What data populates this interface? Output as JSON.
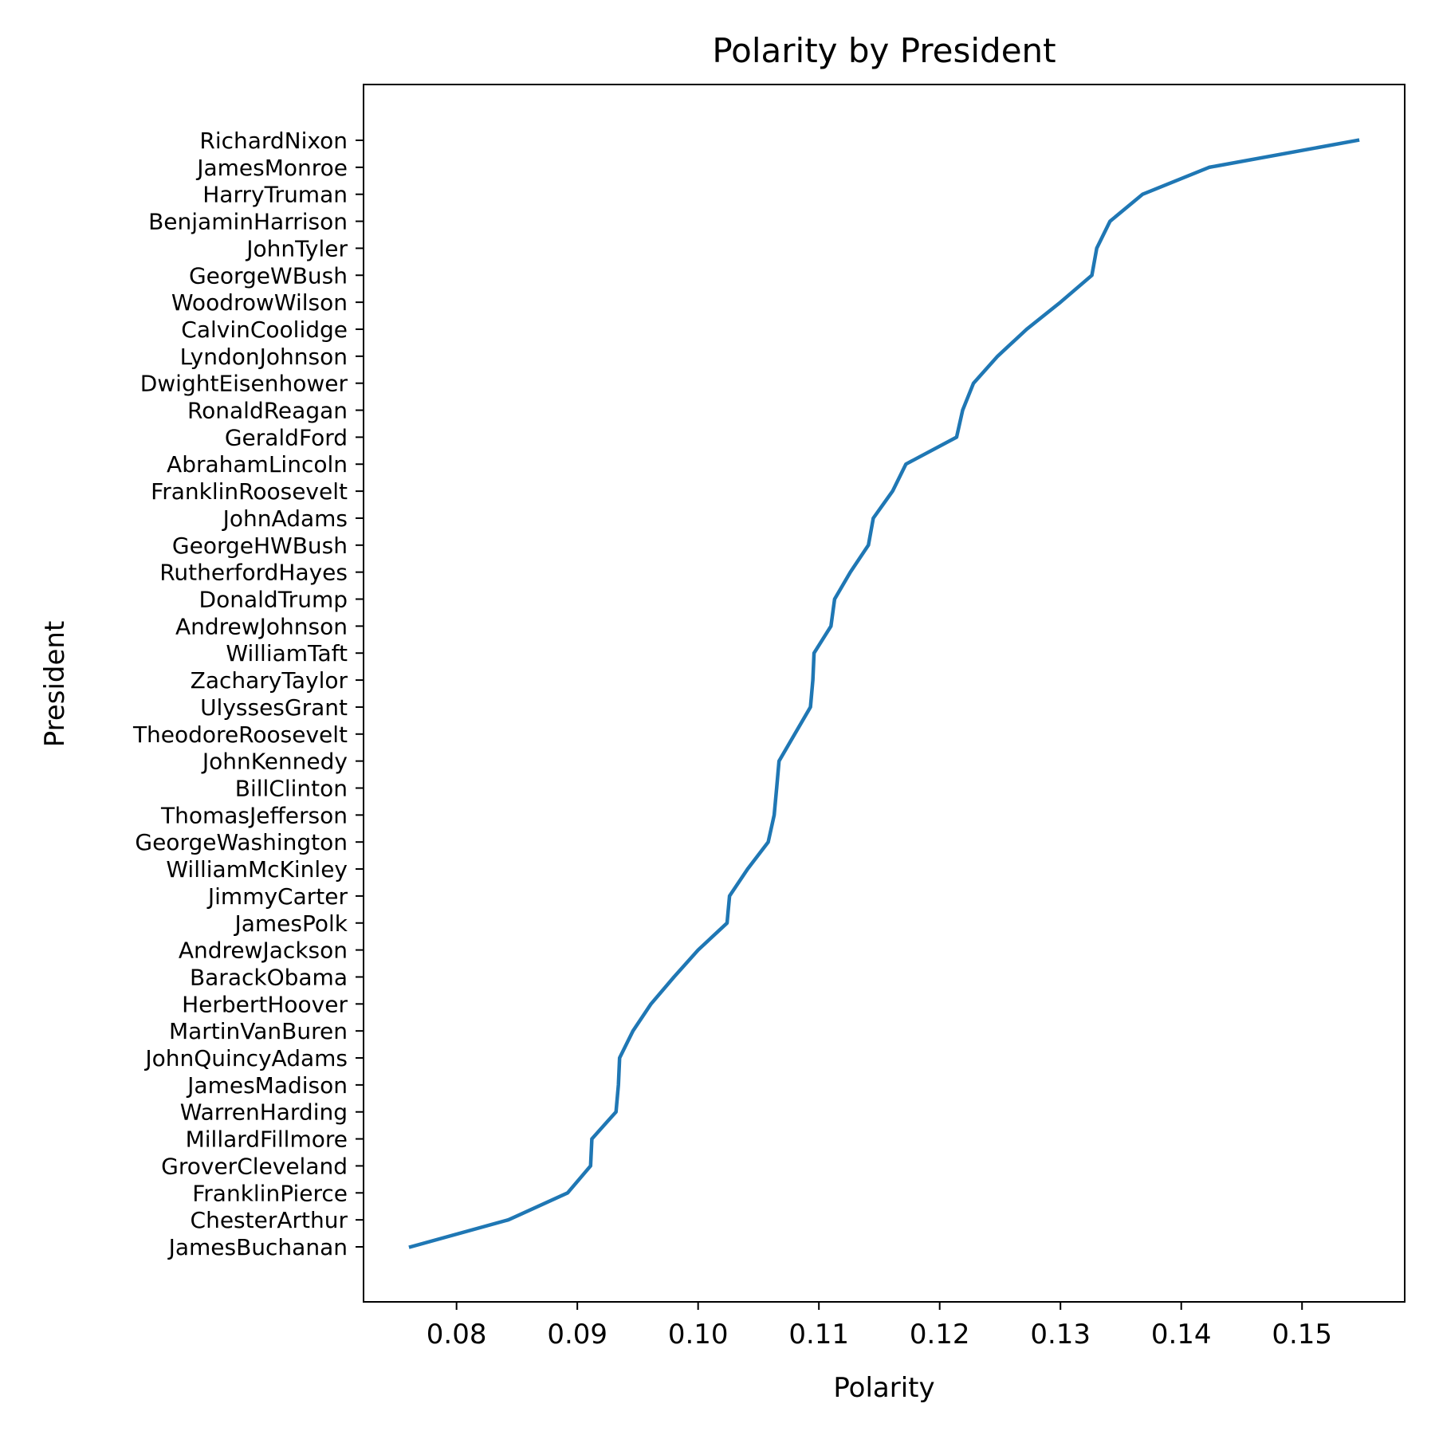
{
  "chart_data": {
    "type": "line",
    "title": "Polarity by President",
    "xlabel": "Polarity",
    "ylabel": "President",
    "xlim": [
      0.0723,
      0.1585
    ],
    "xticks": [
      "0.08",
      "0.09",
      "0.10",
      "0.11",
      "0.12",
      "0.13",
      "0.14",
      "0.15"
    ],
    "xtick_values": [
      0.08,
      0.09,
      0.1,
      0.11,
      0.12,
      0.13,
      0.14,
      0.15
    ],
    "grid": false,
    "series": [
      {
        "color": "#1f77b4",
        "points": [
          {
            "president": "JamesBuchanan",
            "polarity": 0.0762
          },
          {
            "president": "ChesterArthur",
            "polarity": 0.0843
          },
          {
            "president": "FranklinPierce",
            "polarity": 0.0892
          },
          {
            "president": "GroverCleveland",
            "polarity": 0.0911
          },
          {
            "president": "MillardFillmore",
            "polarity": 0.0912
          },
          {
            "president": "WarrenHarding",
            "polarity": 0.0932
          },
          {
            "president": "JamesMadison",
            "polarity": 0.0934
          },
          {
            "president": "JohnQuincyAdams",
            "polarity": 0.0935
          },
          {
            "president": "MartinVanBuren",
            "polarity": 0.0946
          },
          {
            "president": "HerbertHoover",
            "polarity": 0.0961
          },
          {
            "president": "BarackObama",
            "polarity": 0.098
          },
          {
            "president": "AndrewJackson",
            "polarity": 0.1
          },
          {
            "president": "JamesPolk",
            "polarity": 0.1024
          },
          {
            "president": "JimmyCarter",
            "polarity": 0.1026
          },
          {
            "president": "WilliamMcKinley",
            "polarity": 0.1041
          },
          {
            "president": "GeorgeWashington",
            "polarity": 0.1058
          },
          {
            "president": "ThomasJefferson",
            "polarity": 0.1063
          },
          {
            "president": "BillClinton",
            "polarity": 0.1065
          },
          {
            "president": "JohnKennedy",
            "polarity": 0.1067
          },
          {
            "president": "TheodoreRoosevelt",
            "polarity": 0.108
          },
          {
            "president": "UlyssesGrant",
            "polarity": 0.1093
          },
          {
            "president": "ZacharyTaylor",
            "polarity": 0.1095
          },
          {
            "president": "WilliamTaft",
            "polarity": 0.1096
          },
          {
            "president": "AndrewJohnson",
            "polarity": 0.111
          },
          {
            "president": "DonaldTrump",
            "polarity": 0.1113
          },
          {
            "president": "RutherfordHayes",
            "polarity": 0.1126
          },
          {
            "president": "GeorgeHWBush",
            "polarity": 0.1141
          },
          {
            "president": "JohnAdams",
            "polarity": 0.1145
          },
          {
            "president": "FranklinRoosevelt",
            "polarity": 0.1161
          },
          {
            "president": "AbrahamLincoln",
            "polarity": 0.1172
          },
          {
            "president": "GeraldFord",
            "polarity": 0.1214
          },
          {
            "president": "RonaldReagan",
            "polarity": 0.1219
          },
          {
            "president": "DwightEisenhower",
            "polarity": 0.1228
          },
          {
            "president": "LyndonJohnson",
            "polarity": 0.1248
          },
          {
            "president": "CalvinCoolidge",
            "polarity": 0.1272
          },
          {
            "president": "WoodrowWilson",
            "polarity": 0.13
          },
          {
            "president": "GeorgeWBush",
            "polarity": 0.1326
          },
          {
            "president": "JohnTyler",
            "polarity": 0.133
          },
          {
            "president": "BenjaminHarrison",
            "polarity": 0.1341
          },
          {
            "president": "HarryTruman",
            "polarity": 0.1368
          },
          {
            "president": "JamesMonroe",
            "polarity": 0.1423
          },
          {
            "president": "RichardNixon",
            "polarity": 0.1546
          }
        ]
      }
    ]
  }
}
